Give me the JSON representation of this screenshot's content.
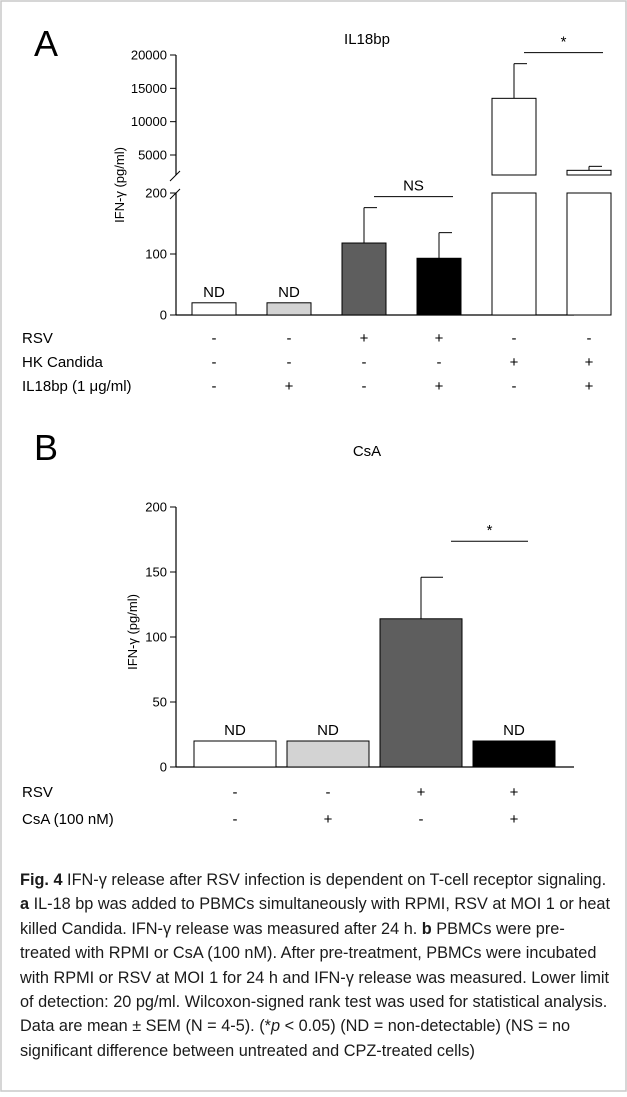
{
  "chart_data": [
    {
      "type": "bar",
      "panel_label": "A",
      "title": "IL18bp",
      "ylabel": "IFN-γ (pg/ml)",
      "ylim_lower": [
        0,
        200
      ],
      "ylim_upper": [
        2000,
        20000
      ],
      "yticks_lower": [
        "0",
        "100",
        "200"
      ],
      "yticks_upper": [
        "5000",
        "10000",
        "15000",
        "20000"
      ],
      "categories": [
        "1",
        "2",
        "3",
        "4",
        "5",
        "6"
      ],
      "values": [
        20,
        20,
        118,
        93,
        13500,
        2700
      ],
      "errors": [
        0,
        0,
        58,
        42,
        5200,
        600
      ],
      "bar_colors": [
        "#ffffff",
        "#d3d3d3",
        "#5e5e5e",
        "#000000",
        "#ffffff",
        "#ffffff"
      ],
      "bar_labels": [
        "ND",
        "ND",
        "",
        "",
        "",
        ""
      ],
      "condition_rows": [
        {
          "label": "RSV",
          "values": [
            "-",
            "-",
            "+",
            "+",
            "-",
            "-"
          ]
        },
        {
          "label": "HK Candida",
          "values": [
            "-",
            "-",
            "-",
            "-",
            "+",
            "+"
          ]
        },
        {
          "label": "IL18bp (1 μg/ml)",
          "values": [
            "-",
            "+",
            "-",
            "+",
            "-",
            "+"
          ]
        }
      ],
      "significance": [
        {
          "from": 2,
          "to": 3,
          "label": "NS"
        },
        {
          "from": 4,
          "to": 5,
          "label": "*"
        }
      ]
    },
    {
      "type": "bar",
      "panel_label": "B",
      "title": "CsA",
      "ylabel": "IFN-γ (pg/ml)",
      "ylim": [
        0,
        200
      ],
      "yticks": [
        "0",
        "50",
        "100",
        "150",
        "200"
      ],
      "categories": [
        "1",
        "2",
        "3",
        "4"
      ],
      "values": [
        20,
        20,
        114,
        20
      ],
      "errors": [
        0,
        0,
        32,
        0
      ],
      "bar_colors": [
        "#ffffff",
        "#d3d3d3",
        "#5e5e5e",
        "#000000"
      ],
      "bar_labels": [
        "ND",
        "ND",
        "",
        "ND"
      ],
      "condition_rows": [
        {
          "label": "RSV",
          "values": [
            "-",
            "-",
            "+",
            "+"
          ]
        },
        {
          "label": "CsA (100 nM)",
          "values": [
            "-",
            "+",
            "-",
            "+"
          ]
        }
      ],
      "significance": [
        {
          "from": 2,
          "to": 3,
          "label": "*"
        }
      ]
    }
  ],
  "caption": {
    "fig_label": "Fig. 4",
    "title": " IFN-γ release after RSV infection is dependent on T-cell receptor signaling. ",
    "a_label": "a",
    "a_text": " IL-18 bp was added to PBMCs simultaneously with RPMI, RSV at MOI 1 or heat killed Candida. IFN-γ release was measured after 24 h. ",
    "b_label": "b",
    "b_text": " PBMCs were pre-treated with RPMI or CsA (100 nM). After pre-treatment, PBMCs were incubated with RPMI or RSV at MOI 1 for 24 h and IFN-γ release was measured. Lower limit of detection: 20 pg/ml. Wilcoxon-signed rank test was used for statistical analysis. Data are mean ± SEM (N = 4-5). (*",
    "p_text": "p",
    "tail_text": " < 0.05) (ND = non-detectable) (NS = no significant difference between untreated and CPZ-treated cells)"
  }
}
